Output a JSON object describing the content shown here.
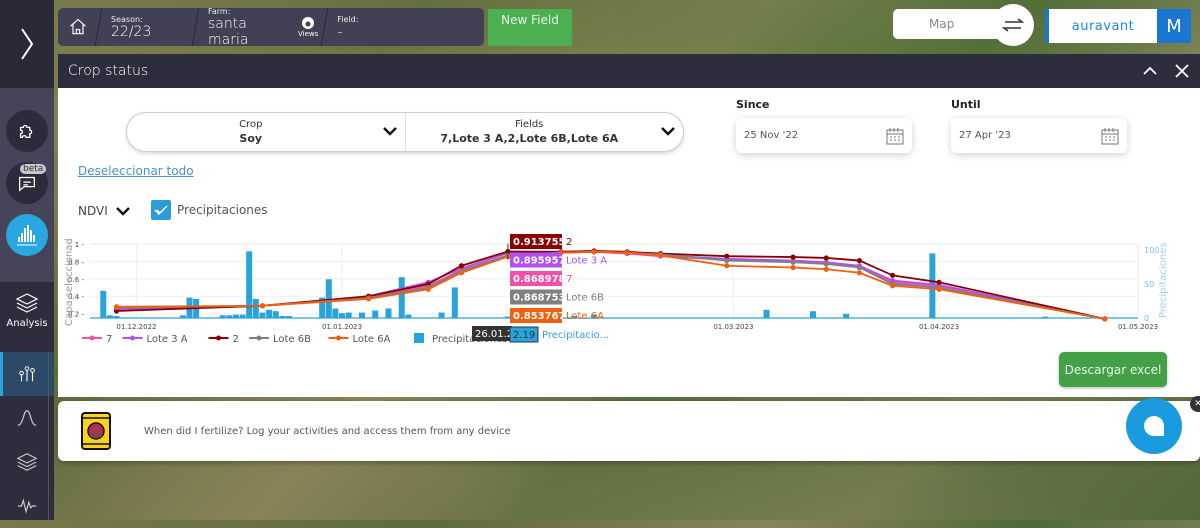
{
  "topbar": {
    "season_label": "Season:",
    "season_value": "22/23",
    "farm_label": "Farm:",
    "farm_value": "santa maria",
    "views_label": "Views",
    "field_label": "Field:",
    "field_value": "-",
    "new_field_label": "New Field"
  },
  "map_toggle": {
    "label": "Map"
  },
  "brand": {
    "name": "auravant",
    "avatar_initial": "M"
  },
  "sidebar": {
    "beta_badge": "beta",
    "analysis_label": "Analysis",
    "items": [
      {
        "icon": "puzzle-icon"
      },
      {
        "icon": "chat-beta-icon"
      },
      {
        "icon": "histogram-icon",
        "active": true
      },
      {
        "icon": "layers-icon",
        "label": "Analysis"
      },
      {
        "icon": "sprouts-icon",
        "selected": true
      },
      {
        "icon": "bell-curve-icon"
      },
      {
        "icon": "layers-icon"
      },
      {
        "icon": "waveform-icon"
      }
    ]
  },
  "modal": {
    "title": "Crop status",
    "crop_label": "Crop",
    "crop_value": "Soy",
    "fields_label": "Fields",
    "fields_value": "7,Lote 3 A,2,Lote 6B,Lote 6A",
    "since_label": "Since",
    "since_value": "25 Nov '22",
    "until_label": "Until",
    "until_value": "27 Apr '23",
    "deselect_label": "Deseleccionar todo",
    "index_select": "NDVI",
    "precip_label": "Precipitaciones",
    "precip_checked": true,
    "download_label": "Descargar excel"
  },
  "chart_data": {
    "type": "line",
    "title": "",
    "xlabel": "",
    "ylabel": "Capa seleccionad",
    "y2label": "Precipitaciones",
    "ylim": [
      0,
      1
    ],
    "y2lim": [
      0,
      100
    ],
    "y_ticks": [
      "0.2",
      "0.4",
      "0.6",
      "0.8",
      "1"
    ],
    "y2_ticks": [
      "0",
      "50",
      "100"
    ],
    "x_ticks": [
      "01.12.2022",
      "01.01.2023",
      "01.03.2023",
      "01.04.2023",
      "01.05.2023"
    ],
    "grid": true,
    "legend_position": "bottom",
    "x": [
      "2022-11-28",
      "2022-12-20",
      "2023-01-05",
      "2023-01-14",
      "2023-01-19",
      "2023-01-26",
      "2023-02-03",
      "2023-02-08",
      "2023-02-13",
      "2023-02-18",
      "2023-02-28",
      "2023-03-10",
      "2023-03-15",
      "2023-03-20",
      "2023-03-25",
      "2023-04-01",
      "2023-04-26"
    ],
    "series": [
      {
        "name": "7",
        "color": "#f050a8",
        "values": [
          0.26,
          0.29,
          0.39,
          0.52,
          0.7,
          0.869,
          0.9,
          0.91,
          0.89,
          0.86,
          0.82,
          0.8,
          0.78,
          0.74,
          0.56,
          0.52,
          0.14
        ]
      },
      {
        "name": "Lote 3 A",
        "color": "#b050f0",
        "values": [
          0.25,
          0.29,
          0.4,
          0.56,
          0.72,
          0.896,
          0.91,
          0.92,
          0.9,
          0.87,
          0.83,
          0.81,
          0.79,
          0.75,
          0.58,
          0.53,
          0.14
        ]
      },
      {
        "name": "2",
        "color": "#8b0000",
        "values": [
          0.23,
          0.29,
          0.4,
          0.54,
          0.75,
          0.914,
          0.91,
          0.92,
          0.91,
          0.89,
          0.86,
          0.85,
          0.84,
          0.81,
          0.64,
          0.56,
          0.14
        ]
      },
      {
        "name": "Lote 6B",
        "color": "#808080",
        "values": [
          0.27,
          0.29,
          0.38,
          0.5,
          0.69,
          0.869,
          0.9,
          0.91,
          0.9,
          0.88,
          0.81,
          0.79,
          0.77,
          0.73,
          0.54,
          0.5,
          0.14
        ]
      },
      {
        "name": "Lote 6A",
        "color": "#f06010",
        "values": [
          0.28,
          0.29,
          0.37,
          0.48,
          0.67,
          0.854,
          0.9,
          0.91,
          0.9,
          0.87,
          0.75,
          0.73,
          0.71,
          0.67,
          0.52,
          0.48,
          0.14
        ]
      }
    ],
    "bars": {
      "name": "Precipitaciones",
      "color": "#29a3dc",
      "x": [
        "2022-11-26",
        "2022-11-27",
        "2022-11-28",
        "2022-12-08",
        "2022-12-09",
        "2022-12-10",
        "2022-12-14",
        "2022-12-15",
        "2022-12-16",
        "2022-12-17",
        "2022-12-18",
        "2022-12-19",
        "2022-12-20",
        "2022-12-21",
        "2022-12-22",
        "2022-12-23",
        "2022-12-24",
        "2022-12-29",
        "2022-12-30",
        "2022-12-31",
        "2023-01-01",
        "2023-01-02",
        "2023-01-04",
        "2023-01-06",
        "2023-01-08",
        "2023-01-10",
        "2023-01-11",
        "2023-01-16",
        "2023-01-18",
        "2023-01-26",
        "2023-02-05",
        "2023-02-08",
        "2023-03-06",
        "2023-03-13",
        "2023-03-18",
        "2023-03-31",
        "2023-04-17"
      ],
      "values": [
        40,
        4,
        3,
        4,
        30,
        28,
        4,
        4,
        5,
        5,
        98,
        28,
        8,
        12,
        10,
        3,
        3,
        30,
        57,
        14,
        7,
        8,
        8,
        11,
        14,
        60,
        5,
        8,
        45,
        2.19,
        3,
        5,
        12,
        10,
        6,
        95,
        2
      ]
    },
    "tooltip": {
      "date": "26.01.2023",
      "entries": [
        {
          "value": "0.913755",
          "name": "2",
          "color": "#8b0000"
        },
        {
          "value": "0.895957",
          "name": "Lote 3 A",
          "color": "#b050f0"
        },
        {
          "value": "0.868978",
          "name": "7",
          "color": "#f050a8"
        },
        {
          "value": "0.868753",
          "name": "Lote 6B",
          "color": "#808080"
        },
        {
          "value": "0.853767",
          "name": "Lote 6A",
          "color": "#f06010"
        },
        {
          "value": "2.19",
          "name": "Precipitacio...",
          "color": "#29a3dc"
        }
      ]
    }
  },
  "promo": {
    "text": "When did I fertilize? Log your activities and access them from any device"
  }
}
